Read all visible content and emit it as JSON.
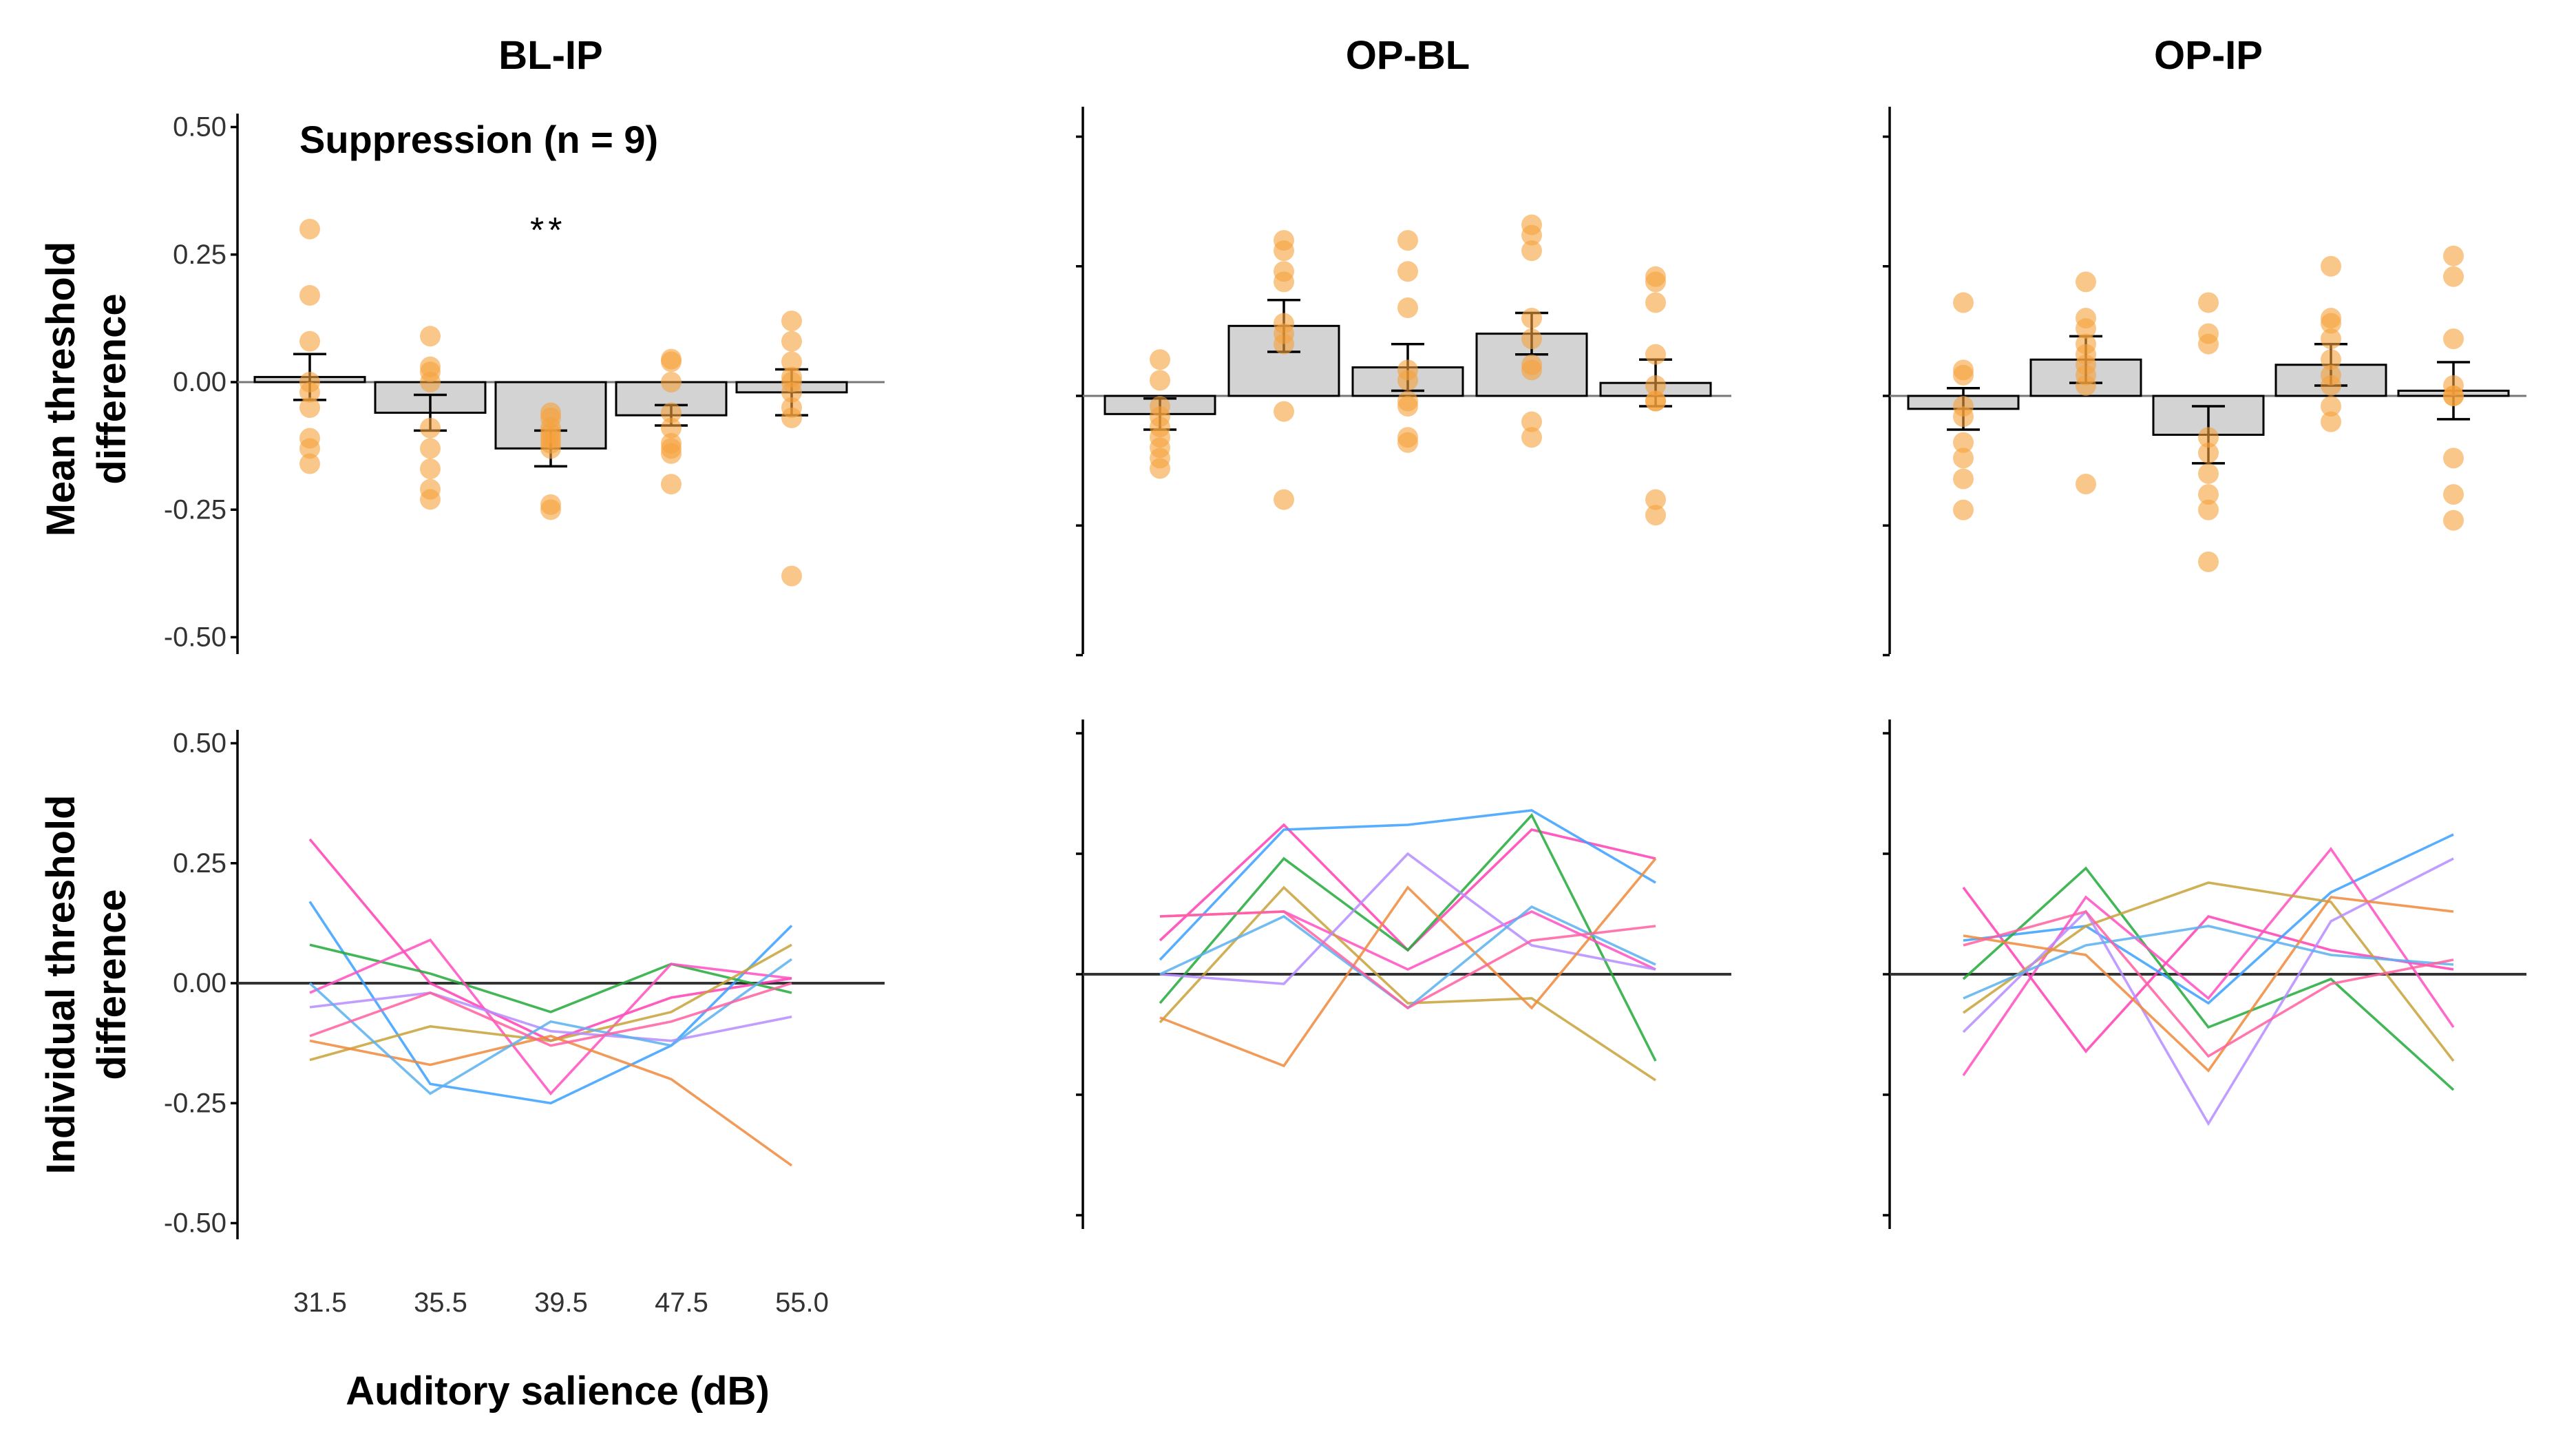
{
  "chart_data": {
    "type": "bar",
    "categories": [
      "31.5",
      "35.5",
      "39.5",
      "47.5",
      "55.0"
    ],
    "xlabel": "Auditory salience (dB)",
    "ylabel_top": "Mean threshold difference",
    "ylabel_bottom": "Individual threshold difference",
    "ylim": [
      -0.5,
      0.5
    ],
    "yticks": [
      "0.50",
      "0.25",
      "0.00",
      "-0.25",
      "-0.50"
    ],
    "annotation": "Suppression (n = 9)",
    "significance": {
      "panel": "BL-IP",
      "category": "39.5",
      "label": "**"
    },
    "point_color": "#f7a23c",
    "bar_color": "#d3d3d3",
    "panels": [
      {
        "title": "BL-IP",
        "means": [
          0.01,
          -0.06,
          -0.13,
          -0.065,
          -0.02
        ],
        "errors": [
          0.045,
          0.035,
          0.035,
          0.02,
          0.045
        ],
        "points": [
          [
            0.3,
            0.17,
            0.08,
            0.0,
            -0.02,
            -0.05,
            -0.11,
            -0.13,
            -0.16
          ],
          [
            0.09,
            0.03,
            0.02,
            0.0,
            -0.09,
            -0.17,
            -0.21,
            -0.23,
            -0.13
          ],
          [
            -0.06,
            -0.07,
            -0.09,
            -0.1,
            -0.11,
            -0.12,
            -0.13,
            -0.24,
            -0.25
          ],
          [
            0.04,
            0.045,
            0.0,
            -0.06,
            -0.09,
            -0.12,
            -0.13,
            -0.14,
            -0.2
          ],
          [
            0.12,
            0.08,
            0.04,
            0.01,
            0.0,
            -0.02,
            -0.05,
            -0.07,
            -0.38
          ]
        ],
        "individuals": [
          [
            0.3,
            0.0,
            -0.12,
            -0.03,
            0.01
          ],
          [
            0.17,
            -0.21,
            -0.25,
            -0.13,
            0.12
          ],
          [
            0.08,
            0.02,
            -0.06,
            0.04,
            -0.02
          ],
          [
            -0.02,
            0.09,
            -0.23,
            0.04,
            0.01
          ],
          [
            -0.16,
            -0.09,
            -0.12,
            -0.06,
            0.08
          ],
          [
            -0.05,
            -0.02,
            -0.1,
            -0.12,
            -0.07
          ],
          [
            -0.12,
            -0.17,
            -0.11,
            -0.2,
            -0.38
          ],
          [
            0.0,
            -0.23,
            -0.08,
            -0.13,
            0.05
          ],
          [
            -0.11,
            -0.02,
            -0.13,
            -0.08,
            0.0
          ]
        ]
      },
      {
        "title": "OP-BL",
        "means": [
          -0.035,
          0.135,
          0.055,
          0.12,
          0.025
        ],
        "errors": [
          0.03,
          0.05,
          0.045,
          0.04,
          0.045
        ],
        "points": [
          [
            0.07,
            0.03,
            -0.02,
            -0.04,
            -0.06,
            -0.08,
            -0.1,
            -0.12,
            -0.14
          ],
          [
            0.3,
            0.28,
            0.24,
            0.22,
            0.14,
            0.12,
            0.1,
            -0.03,
            -0.2
          ],
          [
            0.3,
            0.24,
            0.17,
            0.05,
            0.03,
            -0.01,
            -0.02,
            -0.08,
            -0.09
          ],
          [
            0.33,
            0.31,
            0.28,
            0.15,
            0.11,
            0.06,
            0.05,
            -0.05,
            -0.08
          ],
          [
            0.23,
            0.22,
            0.18,
            0.08,
            0.02,
            -0.01,
            -0.01,
            -0.2,
            -0.23
          ]
        ],
        "individuals": [
          [
            0.07,
            0.31,
            0.05,
            0.3,
            0.24
          ],
          [
            0.03,
            0.3,
            0.31,
            0.34,
            0.19
          ],
          [
            -0.06,
            0.24,
            0.05,
            0.33,
            -0.18
          ],
          [
            0.12,
            0.13,
            0.01,
            0.13,
            0.01
          ],
          [
            -0.1,
            0.18,
            -0.06,
            -0.05,
            -0.22
          ],
          [
            0.0,
            -0.02,
            0.25,
            0.06,
            0.01
          ],
          [
            -0.09,
            -0.19,
            0.18,
            -0.07,
            0.24
          ],
          [
            0.0,
            0.12,
            -0.07,
            0.14,
            0.02
          ],
          [
            0.12,
            0.13,
            -0.07,
            0.07,
            0.1
          ]
        ]
      },
      {
        "title": "OP-IP",
        "means": [
          -0.025,
          0.07,
          -0.075,
          0.06,
          0.01
        ],
        "errors": [
          0.04,
          0.045,
          0.055,
          0.04,
          0.055
        ],
        "points": [
          [
            0.18,
            0.05,
            0.04,
            -0.02,
            -0.04,
            -0.09,
            -0.12,
            -0.16,
            -0.22
          ],
          [
            0.22,
            0.15,
            0.13,
            0.1,
            0.08,
            0.06,
            0.04,
            0.02,
            -0.17
          ],
          [
            0.18,
            0.12,
            0.1,
            -0.08,
            -0.11,
            -0.15,
            -0.19,
            -0.22,
            -0.32
          ],
          [
            0.25,
            0.15,
            0.14,
            0.11,
            0.07,
            0.04,
            0.02,
            -0.02,
            -0.05
          ],
          [
            0.27,
            0.23,
            0.11,
            0.02,
            0.0,
            0.0,
            -0.12,
            -0.19,
            -0.24
          ]
        ],
        "individuals": [
          [
            0.18,
            -0.16,
            0.12,
            0.05,
            0.01
          ],
          [
            0.07,
            0.1,
            -0.06,
            0.17,
            0.29
          ],
          [
            -0.01,
            0.22,
            -0.11,
            -0.01,
            -0.24
          ],
          [
            -0.21,
            0.16,
            -0.05,
            0.26,
            -0.11
          ],
          [
            -0.08,
            0.1,
            0.19,
            0.15,
            -0.18
          ],
          [
            -0.12,
            0.13,
            -0.31,
            0.11,
            0.24
          ],
          [
            0.08,
            0.04,
            -0.2,
            0.16,
            0.13
          ],
          [
            -0.05,
            0.06,
            0.1,
            0.04,
            0.02
          ],
          [
            0.06,
            0.13,
            -0.17,
            -0.02,
            0.03
          ]
        ]
      }
    ],
    "individual_colors": [
      "#ff3fb4",
      "#3aa0ff",
      "#22aa3a",
      "#ff4fc0",
      "#c8a238",
      "#b58cff",
      "#f08a3c",
      "#5ab0f0",
      "#ff5fa0"
    ]
  }
}
